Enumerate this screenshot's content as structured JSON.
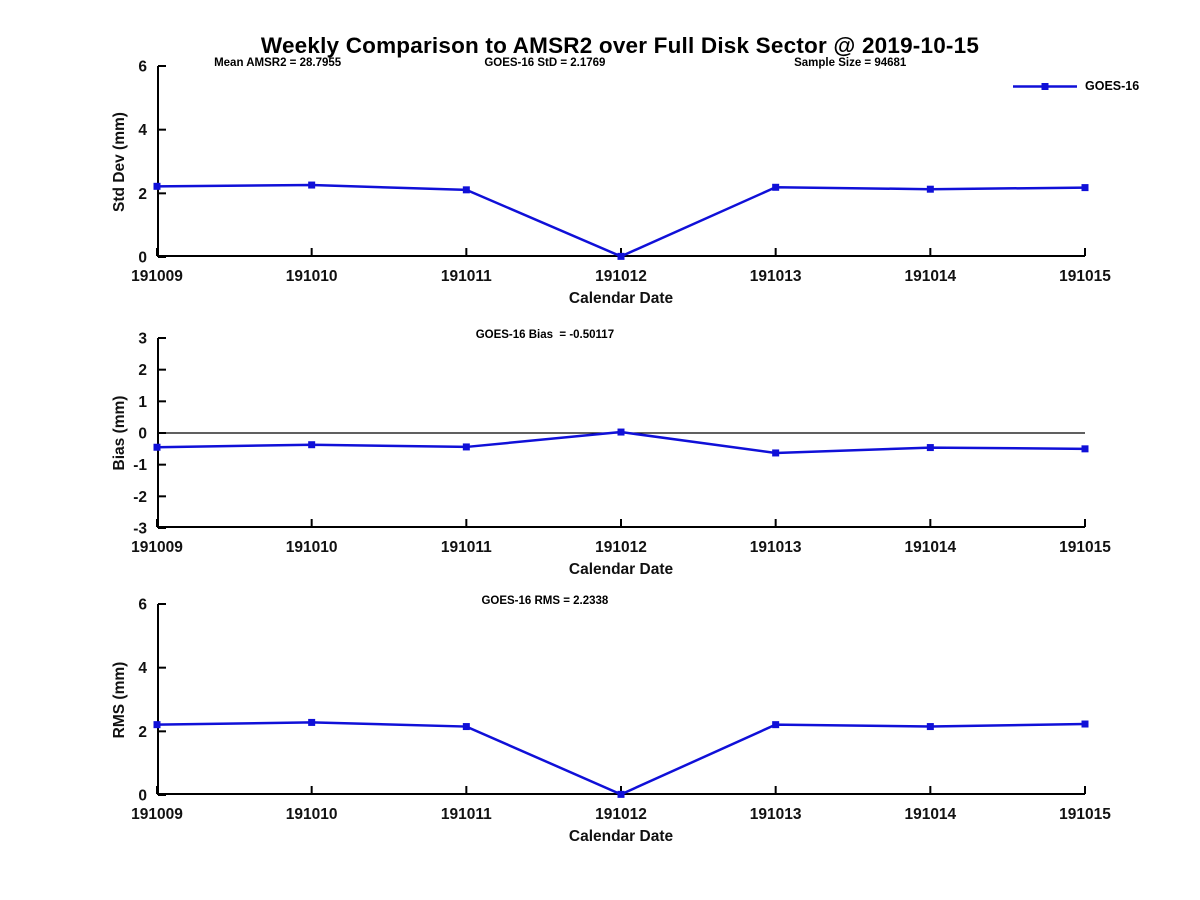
{
  "title": "Weekly Comparison to AMSR2 over Full Disk Sector @ 2019-10-15",
  "legend": {
    "label": "GOES-16"
  },
  "xaxis_label": "Calendar Date",
  "chart_data": [
    {
      "type": "line",
      "name": "std-dev",
      "series_name": "GOES-16",
      "ylabel": "Std Dev (mm)",
      "xlabel": "Calendar Date",
      "ylim": [
        0,
        6
      ],
      "yticks": [
        0,
        2,
        4,
        6
      ],
      "categories": [
        "191009",
        "191010",
        "191011",
        "191012",
        "191013",
        "191014",
        "191015"
      ],
      "values": [
        2.22,
        2.26,
        2.11,
        0.02,
        2.19,
        2.13,
        2.18
      ],
      "color": "#1010D8",
      "grid": false,
      "legend_position": "top-right",
      "annotations": [
        "Mean AMSR2 = 28.7955",
        "GOES-16 StD = 2.1769",
        "Sample Size = 94681"
      ]
    },
    {
      "type": "line",
      "name": "bias",
      "series_name": "GOES-16",
      "ylabel": "Bias (mm)",
      "xlabel": "Calendar Date",
      "ylim": [
        -3,
        3
      ],
      "yticks": [
        3,
        2,
        1,
        0,
        -1,
        -2,
        -3
      ],
      "zero_line": true,
      "categories": [
        "191009",
        "191010",
        "191011",
        "191012",
        "191013",
        "191014",
        "191015"
      ],
      "values": [
        -0.45,
        -0.37,
        -0.44,
        0.03,
        -0.63,
        -0.46,
        -0.5
      ],
      "color": "#1010D8",
      "grid": false,
      "annotations": [
        "GOES-16 Bias  = -0.50117"
      ]
    },
    {
      "type": "line",
      "name": "rms",
      "series_name": "GOES-16",
      "ylabel": "RMS (mm)",
      "xlabel": "Calendar Date",
      "ylim": [
        0,
        6
      ],
      "yticks": [
        0,
        2,
        4,
        6
      ],
      "categories": [
        "191009",
        "191010",
        "191011",
        "191012",
        "191013",
        "191014",
        "191015"
      ],
      "values": [
        2.21,
        2.28,
        2.15,
        0.02,
        2.21,
        2.15,
        2.23
      ],
      "color": "#1010D8",
      "grid": false,
      "annotations": [
        "GOES-16 RMS = 2.2338"
      ]
    }
  ]
}
